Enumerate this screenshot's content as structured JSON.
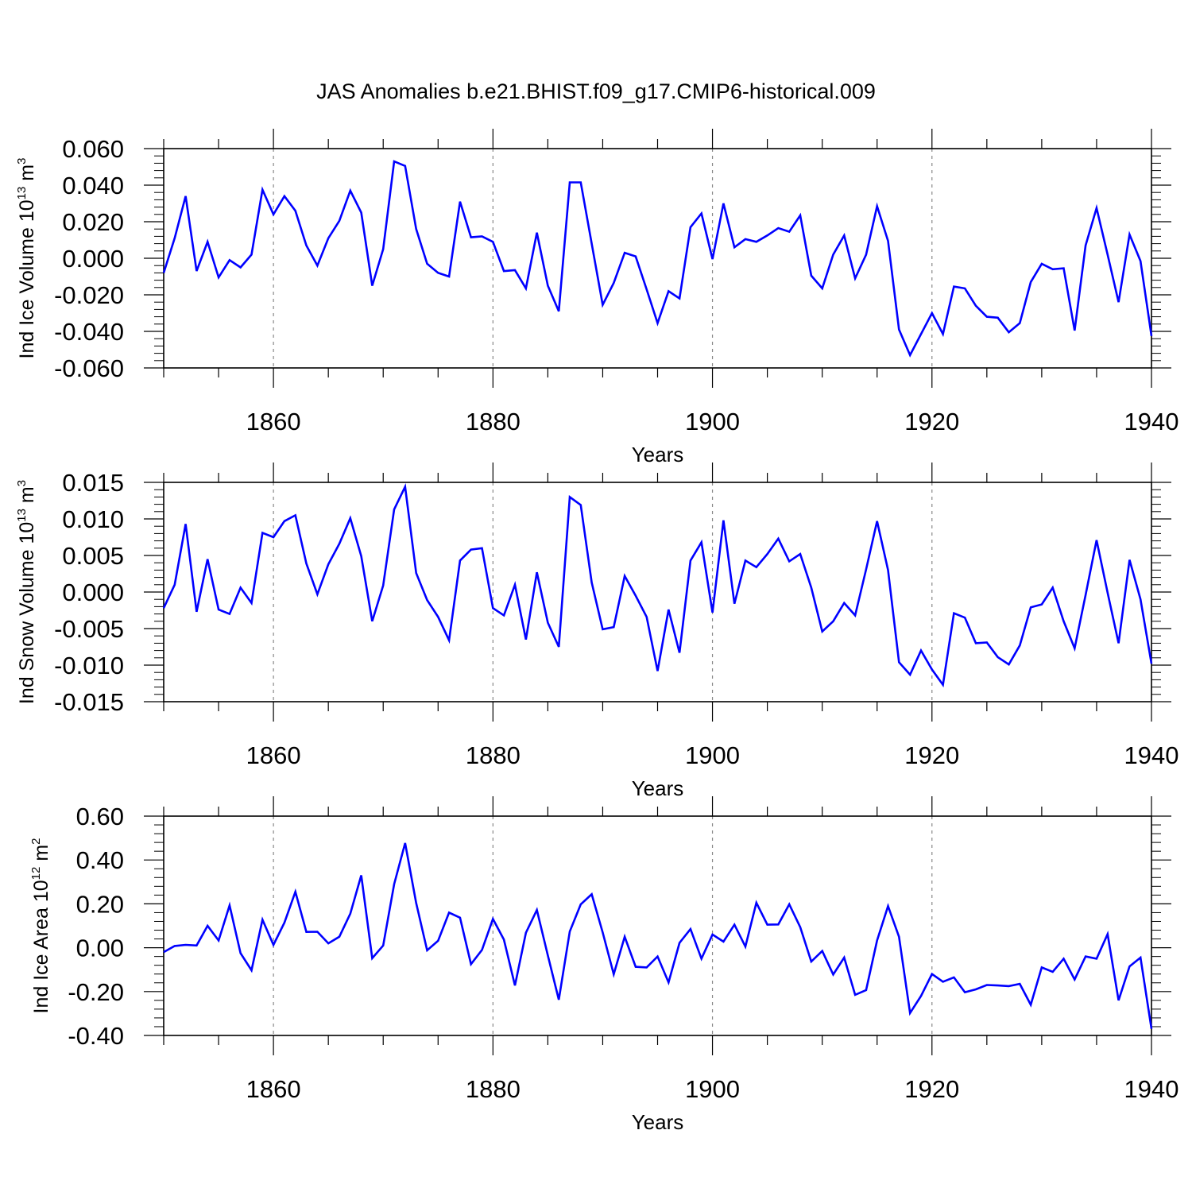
{
  "title": "JAS Anomalies b.e21.BHIST.f09_g17.CMIP6-historical.009",
  "line_color": "#0000ff",
  "chart_data": [
    {
      "type": "line",
      "ylabel_parts": [
        "Ind Ice Volume 10",
        "13",
        " m",
        "3"
      ],
      "xlabel": "Years",
      "xlim": [
        1850,
        1940
      ],
      "ylim": [
        -0.06,
        0.06
      ],
      "xticks": [
        1860,
        1880,
        1900,
        1920,
        1940
      ],
      "xtick_labels": [
        "1860",
        "1880",
        "1900",
        "1920",
        "1940"
      ],
      "yticks": [
        -0.06,
        -0.04,
        -0.02,
        0.0,
        0.02,
        0.04,
        0.06
      ],
      "ytick_labels": [
        "-0.060",
        "-0.040",
        "-0.020",
        "0.000",
        "0.020",
        "0.040",
        "0.060"
      ],
      "grid": "vertical dashed at major x ticks",
      "series": [
        {
          "x_start": 1850,
          "values": [
            -0.008,
            0.011,
            0.034,
            -0.007,
            0.009,
            -0.0105,
            -0.001,
            -0.005,
            0.002,
            0.0375,
            0.024,
            0.034,
            0.026,
            0.007,
            -0.004,
            0.011,
            0.0205,
            0.037,
            0.025,
            -0.015,
            0.005,
            0.053,
            0.0505,
            0.016,
            -0.003,
            -0.008,
            -0.01,
            0.031,
            0.0115,
            0.012,
            0.009,
            -0.007,
            -0.0065,
            -0.0165,
            0.014,
            -0.015,
            -0.029,
            0.0415,
            0.0415,
            0.008,
            -0.0255,
            -0.0135,
            0.003,
            0.001,
            -0.017,
            -0.0355,
            -0.018,
            -0.022,
            0.017,
            0.0245,
            -0.0005,
            0.03,
            0.006,
            0.0105,
            0.009,
            0.0125,
            0.0165,
            0.0145,
            0.0235,
            -0.0095,
            -0.0165,
            0.002,
            0.0125,
            -0.011,
            0.002,
            0.0285,
            0.0095,
            -0.039,
            -0.053,
            -0.0415,
            -0.03,
            -0.0415,
            -0.0155,
            -0.0165,
            -0.026,
            -0.032,
            -0.0325,
            -0.0405,
            -0.0355,
            -0.013,
            -0.003,
            -0.006,
            -0.0055,
            -0.0395,
            0.007,
            0.0275,
            0.002,
            -0.024,
            0.013,
            -0.0015,
            -0.0425
          ]
        }
      ]
    },
    {
      "type": "line",
      "ylabel_parts": [
        "Ind Snow Volume 10",
        "13",
        " m",
        "3"
      ],
      "xlabel": "Years",
      "xlim": [
        1850,
        1940
      ],
      "ylim": [
        -0.015,
        0.015
      ],
      "xticks": [
        1860,
        1880,
        1900,
        1920,
        1940
      ],
      "xtick_labels": [
        "1860",
        "1880",
        "1900",
        "1920",
        "1940"
      ],
      "yticks": [
        -0.015,
        -0.01,
        -0.005,
        0.0,
        0.005,
        0.01,
        0.015
      ],
      "ytick_labels": [
        "-0.015",
        "-0.010",
        "-0.005",
        "0.000",
        "0.005",
        "0.010",
        "0.015"
      ],
      "grid": "vertical dashed at major x ticks",
      "series": [
        {
          "x_start": 1850,
          "values": [
            -0.0022,
            0.001,
            0.0093,
            -0.0027,
            0.0045,
            -0.0024,
            -0.003,
            0.0006,
            -0.0015,
            0.0081,
            0.0075,
            0.0097,
            0.0105,
            0.0039,
            -0.0003,
            0.0038,
            0.0066,
            0.0101,
            0.0049,
            -0.004,
            0.0009,
            0.0113,
            0.0144,
            0.0026,
            -0.0011,
            -0.0034,
            -0.0066,
            0.0043,
            0.0058,
            0.006,
            -0.0022,
            -0.0032,
            0.001,
            -0.0065,
            0.0027,
            -0.0042,
            -0.0075,
            0.013,
            0.0119,
            0.0013,
            -0.0051,
            -0.0048,
            0.0022,
            -0.0005,
            -0.0034,
            -0.0108,
            -0.0024,
            -0.0083,
            0.0043,
            0.0068,
            -0.0028,
            0.0098,
            -0.0016,
            0.0043,
            0.0034,
            0.0052,
            0.0073,
            0.0042,
            0.0052,
            0.0006,
            -0.0054,
            -0.004,
            -0.0015,
            -0.0032,
            0.0031,
            0.0097,
            0.003,
            -0.0096,
            -0.0113,
            -0.008,
            -0.0106,
            -0.0127,
            -0.0029,
            -0.0035,
            -0.007,
            -0.0069,
            -0.0089,
            -0.0099,
            -0.0073,
            -0.0021,
            -0.0017,
            0.0006,
            -0.004,
            -0.0077,
            -0.0004,
            0.0071,
            -0.0001,
            -0.007,
            0.0044,
            -0.001,
            -0.0098
          ]
        }
      ]
    },
    {
      "type": "line",
      "ylabel_parts": [
        "Ind Ice Area 10",
        "12",
        " m",
        "2"
      ],
      "xlabel": "Years",
      "xlim": [
        1850,
        1940
      ],
      "ylim": [
        -0.4,
        0.6
      ],
      "xticks": [
        1860,
        1880,
        1900,
        1920,
        1940
      ],
      "xtick_labels": [
        "1860",
        "1880",
        "1900",
        "1920",
        "1940"
      ],
      "yticks": [
        -0.4,
        -0.2,
        0.0,
        0.2,
        0.4,
        0.6
      ],
      "ytick_labels": [
        "-0.40",
        "-0.20",
        "0.00",
        "0.20",
        "0.40",
        "0.60"
      ],
      "grid": "vertical dashed at major x ticks",
      "series": [
        {
          "x_start": 1850,
          "values": [
            -0.02,
            0.008,
            0.013,
            0.01,
            0.1,
            0.033,
            0.193,
            -0.025,
            -0.103,
            0.128,
            0.013,
            0.114,
            0.255,
            0.072,
            0.073,
            0.02,
            0.05,
            0.155,
            0.33,
            -0.048,
            0.01,
            0.29,
            0.477,
            0.204,
            -0.012,
            0.032,
            0.16,
            0.137,
            -0.075,
            -0.01,
            0.131,
            0.037,
            -0.172,
            0.068,
            0.172,
            -0.035,
            -0.237,
            0.074,
            0.198,
            0.244,
            0.07,
            -0.121,
            0.05,
            -0.087,
            -0.09,
            -0.04,
            -0.158,
            0.022,
            0.085,
            -0.05,
            0.06,
            0.028,
            0.105,
            0.005,
            0.205,
            0.105,
            0.106,
            0.198,
            0.094,
            -0.063,
            -0.015,
            -0.122,
            -0.045,
            -0.215,
            -0.193,
            0.033,
            0.19,
            0.05,
            -0.298,
            -0.22,
            -0.12,
            -0.155,
            -0.135,
            -0.203,
            -0.19,
            -0.17,
            -0.172,
            -0.175,
            -0.165,
            -0.26,
            -0.09,
            -0.11,
            -0.05,
            -0.145,
            -0.04,
            -0.05,
            0.062,
            -0.24,
            -0.085,
            -0.045,
            -0.37
          ]
        }
      ]
    }
  ]
}
